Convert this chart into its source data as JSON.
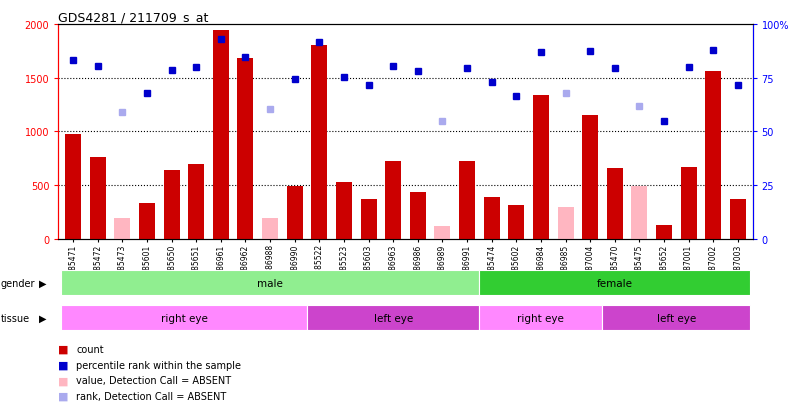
{
  "title": "GDS4281 / 211709_s_at",
  "samples": [
    "GSM685471",
    "GSM685472",
    "GSM685473",
    "GSM685601",
    "GSM685650",
    "GSM685651",
    "GSM686961",
    "GSM686962",
    "GSM686988",
    "GSM686990",
    "GSM685522",
    "GSM685523",
    "GSM685603",
    "GSM686963",
    "GSM686986",
    "GSM686989",
    "GSM686991",
    "GSM685474",
    "GSM685602",
    "GSM686984",
    "GSM686985",
    "GSM687004",
    "GSM685470",
    "GSM685475",
    "GSM685652",
    "GSM687001",
    "GSM687002",
    "GSM687003"
  ],
  "count_values": [
    980,
    760,
    null,
    340,
    640,
    700,
    1940,
    1680,
    null,
    490,
    1800,
    530,
    370,
    730,
    440,
    null,
    730,
    390,
    320,
    1340,
    null,
    1150,
    660,
    null,
    130,
    670,
    1560,
    370
  ],
  "count_absent": [
    null,
    null,
    200,
    null,
    null,
    null,
    null,
    null,
    200,
    null,
    null,
    null,
    null,
    null,
    null,
    120,
    null,
    null,
    null,
    null,
    300,
    null,
    null,
    490,
    null,
    null,
    null,
    null
  ],
  "rank_values": [
    1660,
    1610,
    null,
    1360,
    1570,
    1600,
    1860,
    1690,
    null,
    1490,
    1830,
    1510,
    1430,
    1610,
    1560,
    null,
    1590,
    1460,
    1330,
    1740,
    null,
    1750,
    1590,
    null,
    1100,
    1600,
    1760,
    1430
  ],
  "rank_absent": [
    null,
    null,
    1180,
    null,
    null,
    null,
    null,
    null,
    1210,
    null,
    null,
    null,
    null,
    null,
    null,
    1100,
    null,
    null,
    null,
    null,
    1360,
    null,
    null,
    1240,
    null,
    null,
    null,
    null
  ],
  "gender_groups": [
    {
      "label": "male",
      "start": 0,
      "end": 16,
      "color": "#90EE90"
    },
    {
      "label": "female",
      "start": 17,
      "end": 27,
      "color": "#32CD32"
    }
  ],
  "tissue_groups": [
    {
      "label": "right eye",
      "start": 0,
      "end": 9,
      "color": "#FF88FF"
    },
    {
      "label": "left eye",
      "start": 10,
      "end": 16,
      "color": "#CC44CC"
    },
    {
      "label": "right eye",
      "start": 17,
      "end": 21,
      "color": "#FF88FF"
    },
    {
      "label": "left eye",
      "start": 22,
      "end": 27,
      "color": "#CC44CC"
    }
  ],
  "ylim_left": [
    0,
    2000
  ],
  "ylim_right": [
    0,
    100
  ],
  "yticks_left": [
    0,
    500,
    1000,
    1500,
    2000
  ],
  "yticks_right": [
    0,
    25,
    50,
    75,
    100
  ],
  "bar_color_red": "#CC0000",
  "bar_color_pink": "#FFB6C1",
  "dot_color_blue": "#0000CC",
  "dot_color_lightblue": "#AAAAEE",
  "background_color": "#FFFFFF",
  "legend_items": [
    {
      "label": "count",
      "color": "#CC0000"
    },
    {
      "label": "percentile rank within the sample",
      "color": "#0000CC"
    },
    {
      "label": "value, Detection Call = ABSENT",
      "color": "#FFB6C1"
    },
    {
      "label": "rank, Detection Call = ABSENT",
      "color": "#AAAAEE"
    }
  ]
}
